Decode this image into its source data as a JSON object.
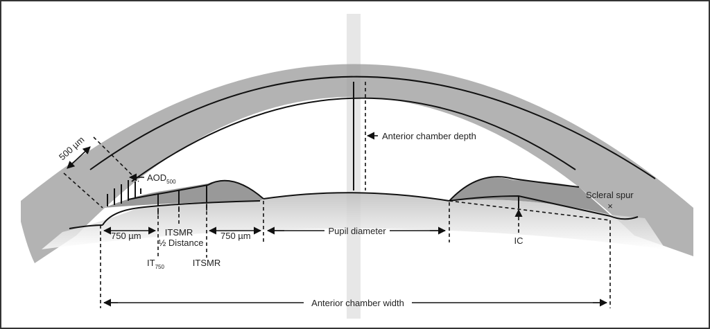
{
  "labels": {
    "thickness": "500 µm",
    "aod": "AOD",
    "aod_sub": "500",
    "acd": "Anterior chamber depth",
    "dist_left": "750 µm",
    "itsmr_half_1": "ITSMR",
    "itsmr_half_2": "½ Distance",
    "dist_right": "750 µm",
    "it": "IT",
    "it_sub": "750",
    "itsmr": "ITSMR",
    "pupil": "Pupil diameter",
    "ic": "IC",
    "scleral_spur": "Scleral spur",
    "spur_mark": "×",
    "acw": "Anterior chamber width"
  },
  "colors": {
    "tissue": "#9a9a9a",
    "line": "#111111",
    "border": "#333333"
  }
}
